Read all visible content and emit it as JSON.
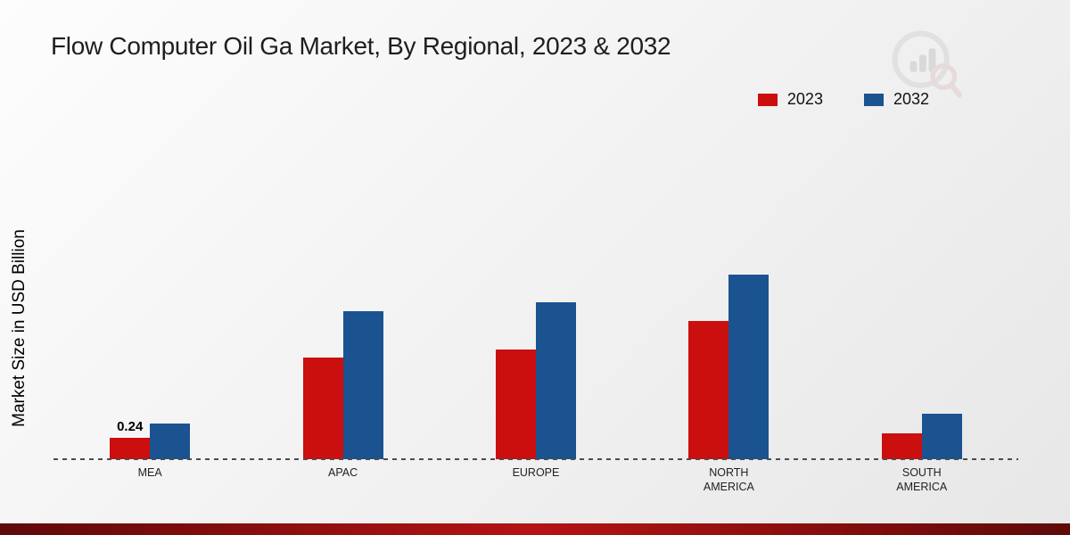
{
  "page": {
    "background_top": "#fdfdfd",
    "background_bottom": "#e7e7e7",
    "footer_colors": [
      "#5f0909",
      "#b51313",
      "#5f0909"
    ]
  },
  "icons": {
    "watermark": "bar-chart-magnifier-logo"
  },
  "chart_data": {
    "type": "bar",
    "title": "Flow Computer Oil Ga Market, By Regional, 2023 & 2032",
    "xlabel": "",
    "ylabel": "Market Size in USD Billion",
    "categories": [
      "MEA",
      "APAC",
      "EUROPE",
      "NORTH AMERICA",
      "SOUTH AMERICA"
    ],
    "category_labels": [
      "MEA",
      "APAC",
      "EUROPE",
      "NORTH\nAMERICA",
      "SOUTH\nAMERICA"
    ],
    "series": [
      {
        "name": "2023",
        "color": "#cb0e0e",
        "values": [
          0.24,
          1.14,
          1.23,
          1.55,
          0.29
        ]
      },
      {
        "name": "2032",
        "color": "#1a5390",
        "values": [
          0.4,
          1.66,
          1.76,
          2.07,
          0.51
        ]
      }
    ],
    "annotations": [
      {
        "category": "MEA",
        "series": "2023",
        "text": "0.24"
      }
    ],
    "ylim": [
      0,
      2.6
    ],
    "grid": "off",
    "legend_position": "top-right",
    "baseline": "dashed"
  }
}
